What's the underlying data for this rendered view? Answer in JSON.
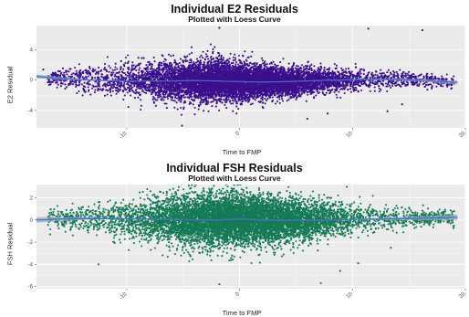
{
  "chart_data": [
    {
      "type": "scatter",
      "title": "Individual E2 Residuals",
      "subtitle": "Plotted with Loess Curve",
      "xlabel": "Time to FMP",
      "ylabel": "E2 Residual",
      "xlim": [
        -18,
        20
      ],
      "ylim": [
        -6.3,
        7.2
      ],
      "xticks": [
        -10,
        0,
        10,
        20
      ],
      "yticks": [
        -4,
        0,
        4
      ],
      "grid": true,
      "point_color": "#3b0f8c",
      "background": "#ebebeb",
      "spread_sd": [
        [
          -18,
          0.4
        ],
        [
          -14,
          0.8
        ],
        [
          -8,
          1.2
        ],
        [
          -3,
          1.35
        ],
        [
          2,
          1.05
        ],
        [
          8,
          0.75
        ],
        [
          13,
          0.6
        ],
        [
          18,
          0.35
        ]
      ],
      "point_count": 9000,
      "outliers": [
        [
          16.2,
          6.6
        ],
        [
          11.4,
          6.8
        ],
        [
          -1.8,
          6.9
        ],
        [
          -5.1,
          -6.0
        ],
        [
          -10.5,
          2.5
        ],
        [
          -17.4,
          1.4
        ],
        [
          14.4,
          -3.2
        ],
        [
          7.8,
          -4.4
        ],
        [
          6.0,
          -5.1
        ],
        [
          13.1,
          -4.1
        ]
      ],
      "loess": {
        "x": [
          -18,
          -16,
          -14,
          -12,
          -10,
          -8,
          -6,
          -4,
          -2,
          0,
          2,
          4,
          6,
          8,
          10,
          12,
          14,
          16,
          18,
          19.3
        ],
        "y": [
          0.5,
          0.25,
          0.05,
          -0.05,
          -0.1,
          -0.12,
          -0.1,
          -0.05,
          -0.12,
          -0.2,
          -0.25,
          -0.2,
          -0.1,
          0.0,
          0.05,
          0.1,
          0.05,
          0.0,
          -0.2,
          -0.3
        ],
        "color": "#3d6fc2",
        "band_color": "#9aa5c4",
        "se": [
          0.25,
          0.18,
          0.12,
          0.08,
          0.06,
          0.05,
          0.05,
          0.05,
          0.05,
          0.05,
          0.05,
          0.05,
          0.05,
          0.06,
          0.07,
          0.09,
          0.12,
          0.16,
          0.22,
          0.26
        ]
      }
    },
    {
      "type": "scatter",
      "title": "Individual FSH Residuals",
      "subtitle": "Plotted with Loess Curve",
      "xlabel": "Time to FMP",
      "ylabel": "FSH Residual",
      "xlim": [
        -18,
        20
      ],
      "ylim": [
        -6.2,
        3.2
      ],
      "xticks": [
        -10,
        0,
        10,
        20
      ],
      "yticks": [
        -6,
        -4,
        -2,
        0,
        2
      ],
      "grid": true,
      "point_color": "#157a55",
      "background": "#ebebeb",
      "spread_sd": [
        [
          -18,
          0.35
        ],
        [
          -14,
          0.6
        ],
        [
          -8,
          1.0
        ],
        [
          -3,
          1.2
        ],
        [
          2,
          1.05
        ],
        [
          8,
          0.8
        ],
        [
          13,
          0.55
        ],
        [
          18,
          0.35
        ]
      ],
      "point_count": 9000,
      "outliers": [
        [
          8.9,
          -4.6
        ],
        [
          7.2,
          -5.7
        ],
        [
          -1.8,
          -5.8
        ],
        [
          -12.5,
          -4.0
        ],
        [
          -16.8,
          -1.3
        ],
        [
          -15.0,
          -0.9
        ],
        [
          10.5,
          -3.9
        ],
        [
          13.4,
          -2.5
        ],
        [
          19.0,
          0.8
        ],
        [
          9.5,
          3.0
        ],
        [
          -1.2,
          3.2
        ],
        [
          -4.5,
          3.1
        ]
      ],
      "loess": {
        "x": [
          -18,
          -16,
          -14,
          -12,
          -10,
          -8,
          -6,
          -4,
          -2,
          0,
          2,
          4,
          6,
          8,
          10,
          12,
          14,
          16,
          18,
          19.3
        ],
        "y": [
          0.0,
          0.08,
          0.12,
          0.12,
          0.1,
          0.08,
          0.05,
          0.02,
          0.0,
          0.1,
          0.0,
          -0.05,
          -0.05,
          0.0,
          0.05,
          0.08,
          0.12,
          0.15,
          0.2,
          0.25
        ],
        "color": "#3d6fc2",
        "band_color": "#9aa5c4",
        "se": [
          0.25,
          0.18,
          0.12,
          0.08,
          0.06,
          0.05,
          0.05,
          0.05,
          0.05,
          0.05,
          0.05,
          0.05,
          0.05,
          0.06,
          0.07,
          0.09,
          0.12,
          0.16,
          0.22,
          0.26
        ]
      }
    }
  ]
}
